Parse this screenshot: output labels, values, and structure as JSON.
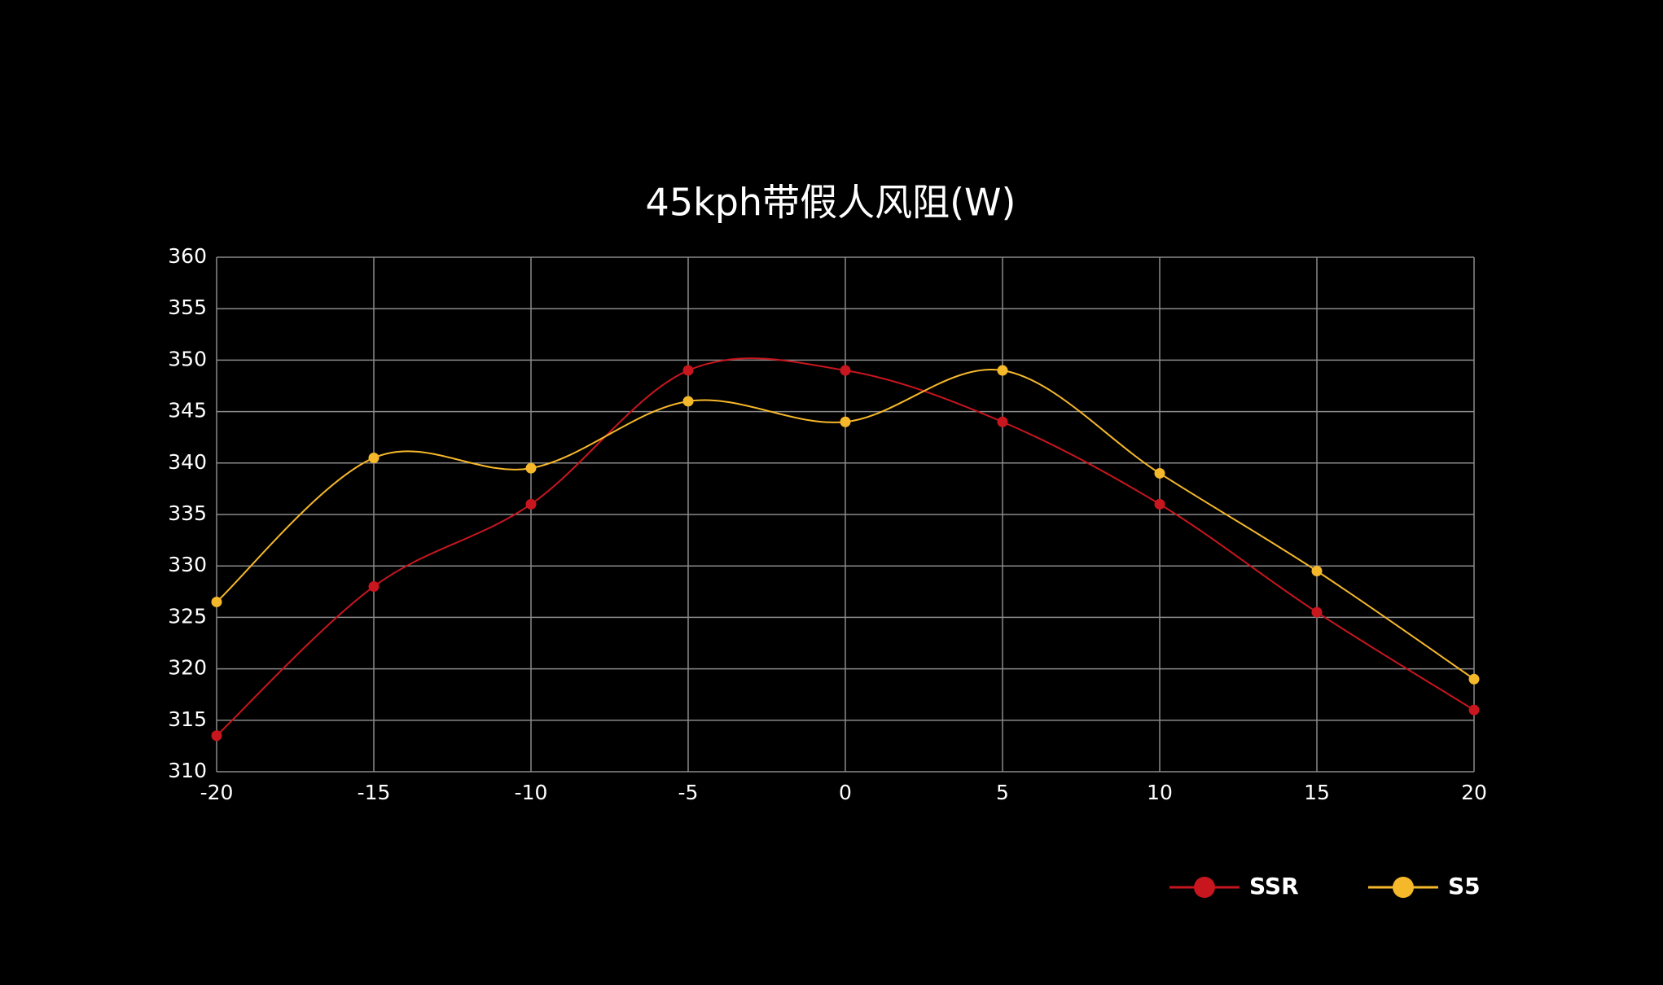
{
  "chart_data": {
    "type": "line",
    "title": "45kph带假人风阻(W)",
    "x": [
      -20,
      -15,
      -10,
      -5,
      0,
      5,
      10,
      15,
      20
    ],
    "series": [
      {
        "name": "SSR",
        "color": "#c8161e",
        "values": [
          313.5,
          328,
          336,
          349,
          349,
          344,
          336,
          325.5,
          316
        ]
      },
      {
        "name": "S5",
        "color": "#f6b82b",
        "values": [
          326.5,
          340.5,
          339.5,
          346,
          344,
          349,
          339,
          329.5,
          319
        ]
      }
    ],
    "xlim": [
      -20,
      20
    ],
    "xticks": [
      -20,
      -15,
      -10,
      -5,
      0,
      5,
      10,
      15,
      20
    ],
    "ylim": [
      310,
      360
    ],
    "yticks": [
      310,
      315,
      320,
      325,
      330,
      335,
      340,
      345,
      350,
      355,
      360
    ],
    "grid": true,
    "smooth": true
  }
}
